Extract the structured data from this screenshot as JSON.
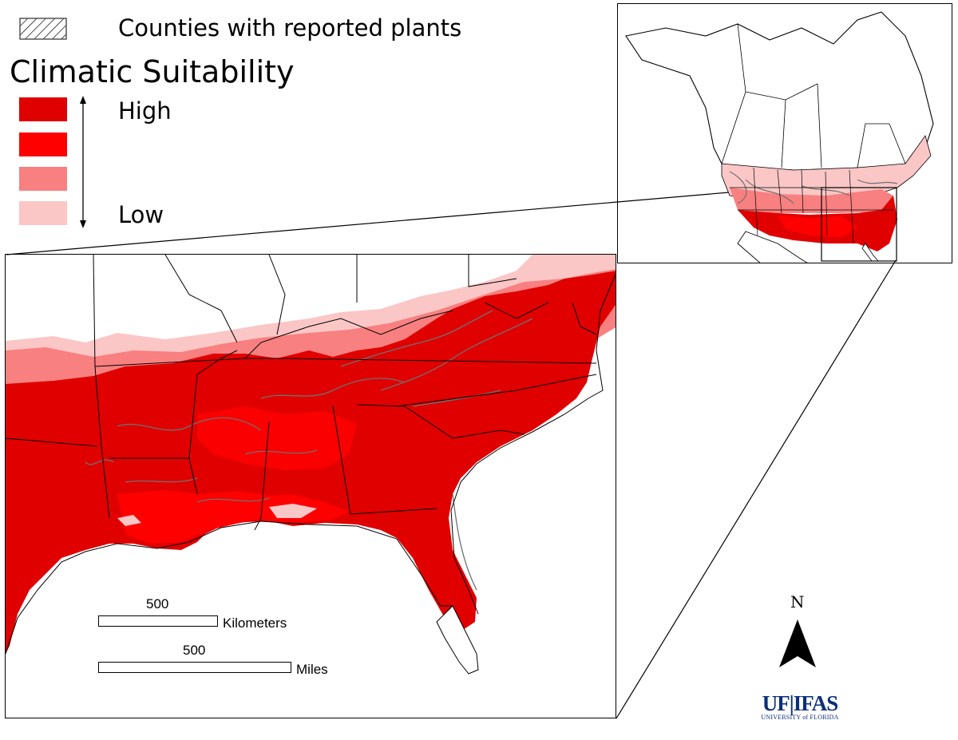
{
  "legend": {
    "hatch_label": "Counties with reported plants",
    "title": "Climatic Suitability",
    "high_label": "High",
    "low_label": "Low",
    "classes": [
      {
        "level": "highest",
        "color": "#e00000"
      },
      {
        "level": "high",
        "color": "#ff0000"
      },
      {
        "level": "low",
        "color": "#f88080"
      },
      {
        "level": "lowest",
        "color": "#fbc6c6"
      }
    ]
  },
  "scale_bar": {
    "km_value": "500",
    "km_unit": "Kilometers",
    "mi_value": "500",
    "mi_unit": "Miles"
  },
  "north_arrow": {
    "label": "N"
  },
  "logo": {
    "main": "UF|IFAS",
    "sub": "UNIVERSITY of FLORIDA"
  },
  "colors": {
    "suitability_highest": "#e00000",
    "suitability_high": "#ff0000",
    "suitability_low": "#f88080",
    "suitability_lowest": "#fbc6c6",
    "county_outline": "#707070",
    "logo_blue": "#0b2f7a"
  }
}
